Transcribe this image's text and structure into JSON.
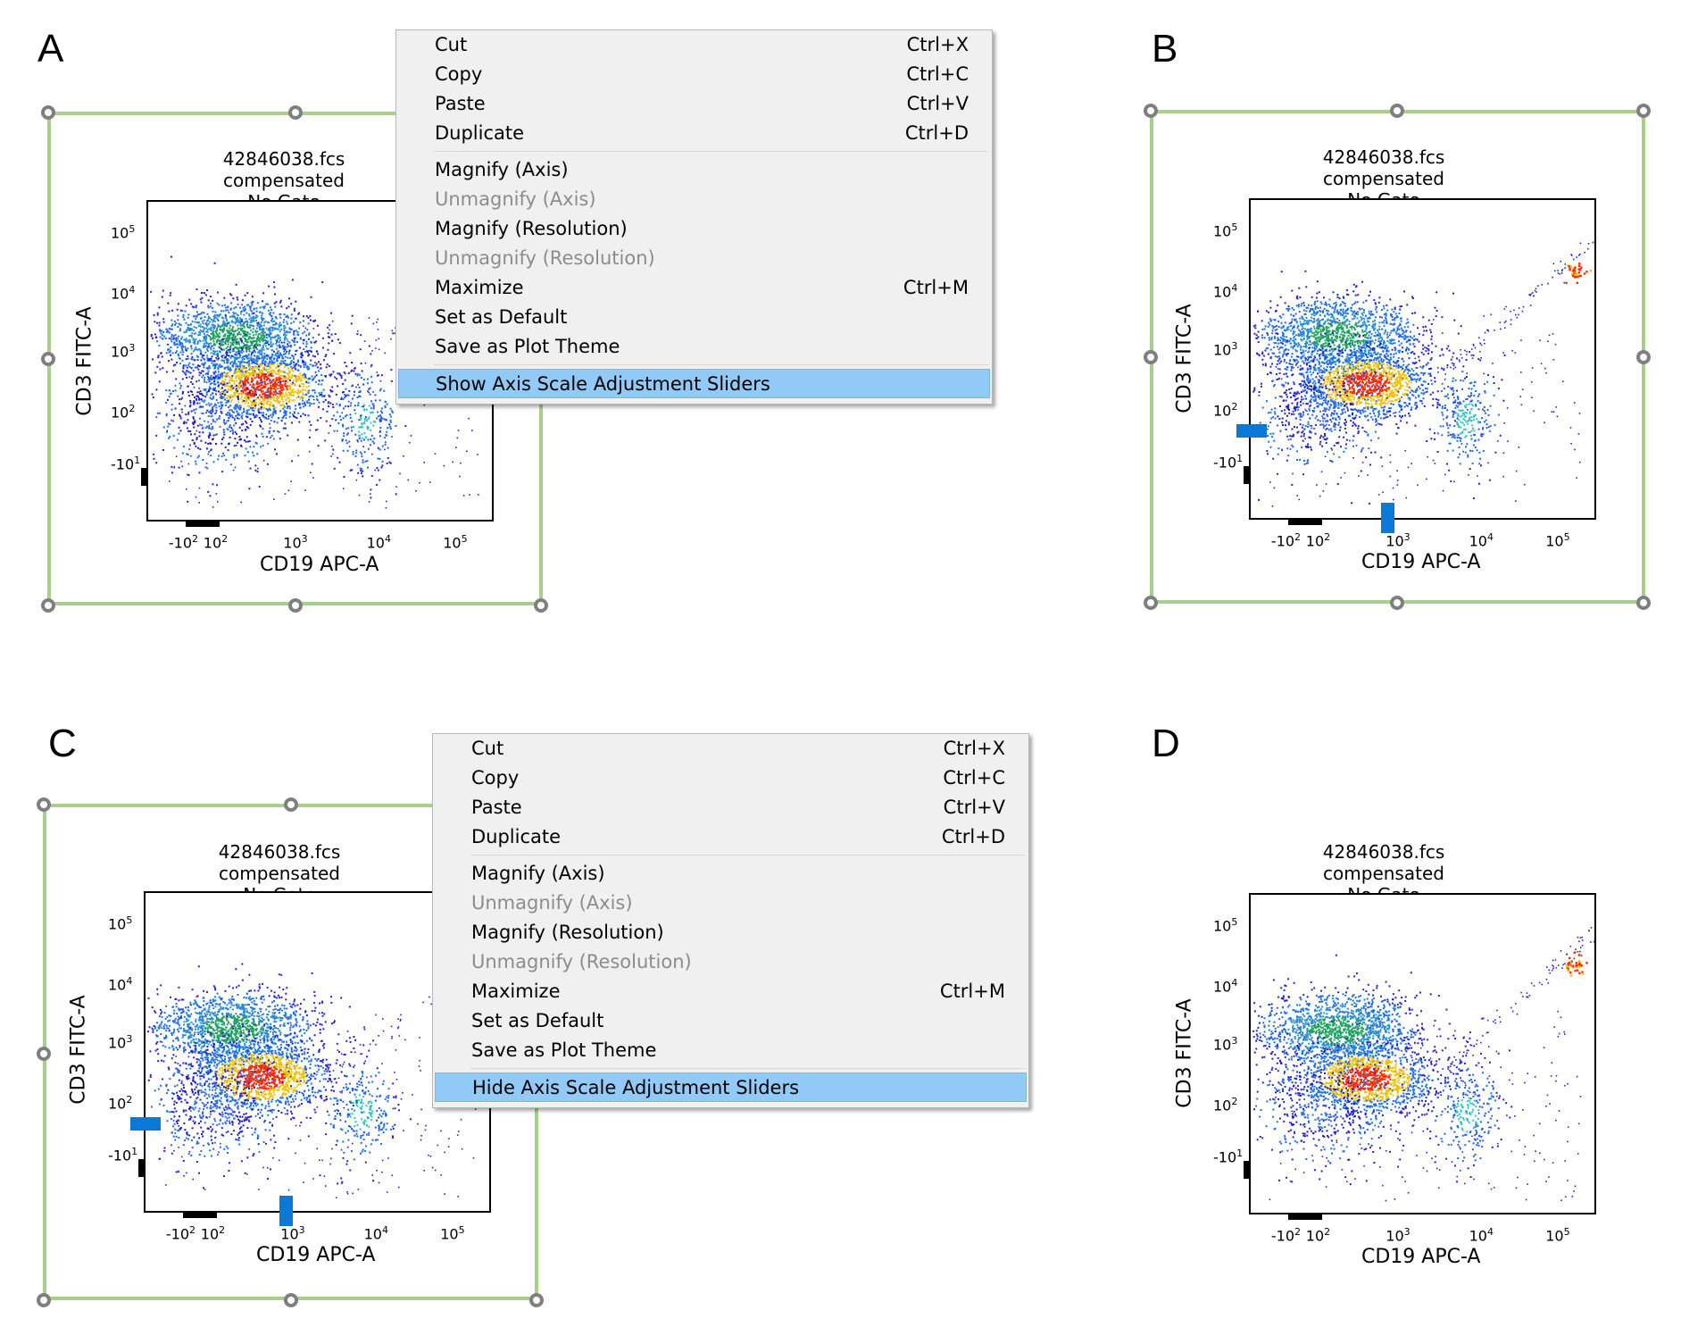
{
  "panels": [
    {
      "letter": "A",
      "plot": {
        "title_line1": "42846038.fcs compensated",
        "title_line2": "No Gate",
        "y_axis_label": "CD3 FITC-A",
        "x_axis_label": "CD19 APC-A"
      },
      "selected": true,
      "sliders_shown": false,
      "extended_range": false
    },
    {
      "letter": "B",
      "plot": {
        "title_line1": "42846038.fcs compensated",
        "title_line2": "No Gate",
        "y_axis_label": "CD3 FITC-A",
        "x_axis_label": "CD19 APC-A"
      },
      "selected": true,
      "sliders_shown": true,
      "extended_range": true
    },
    {
      "letter": "C",
      "plot": {
        "title_line1": "42846038.fcs compensated",
        "title_line2": "No Gate",
        "y_axis_label": "CD3 FITC-A",
        "x_axis_label": "CD19 APC-A"
      },
      "selected": true,
      "sliders_shown": true,
      "extended_range": false
    },
    {
      "letter": "D",
      "plot": {
        "title_line1": "42846038.fcs compensated",
        "title_line2": "No Gate",
        "y_axis_label": "CD3 FITC-A",
        "x_axis_label": "CD19 APC-A"
      },
      "selected": false,
      "sliders_shown": false,
      "extended_range": true
    }
  ],
  "axis_ticks": {
    "y": [
      "10^5",
      "10^4",
      "10^3",
      "10^2",
      "-10^1"
    ],
    "x": [
      "-10^2",
      "10^2",
      "10^3",
      "10^4",
      "10^5"
    ]
  },
  "menu_a": {
    "items": [
      {
        "label": "Cut",
        "shortcut": "Ctrl+X"
      },
      {
        "label": "Copy",
        "shortcut": "Ctrl+C"
      },
      {
        "label": "Paste",
        "shortcut": "Ctrl+V"
      },
      {
        "label": "Duplicate",
        "shortcut": "Ctrl+D"
      },
      {
        "label": "Magnify (Axis)",
        "shortcut": ""
      },
      {
        "label": "Unmagnify (Axis)",
        "shortcut": ""
      },
      {
        "label": "Magnify (Resolution)",
        "shortcut": ""
      },
      {
        "label": "Unmagnify (Resolution)",
        "shortcut": ""
      },
      {
        "label": "Maximize",
        "shortcut": "Ctrl+M"
      },
      {
        "label": "Set as Default",
        "shortcut": ""
      },
      {
        "label": "Save as Plot Theme",
        "shortcut": ""
      },
      {
        "label": "Show Axis Scale Adjustment Sliders",
        "shortcut": ""
      }
    ]
  },
  "menu_c": {
    "items": [
      {
        "label": "Cut",
        "shortcut": "Ctrl+X"
      },
      {
        "label": "Copy",
        "shortcut": "Ctrl+C"
      },
      {
        "label": "Paste",
        "shortcut": "Ctrl+V"
      },
      {
        "label": "Duplicate",
        "shortcut": "Ctrl+D"
      },
      {
        "label": "Magnify (Axis)",
        "shortcut": ""
      },
      {
        "label": "Unmagnify (Axis)",
        "shortcut": ""
      },
      {
        "label": "Magnify (Resolution)",
        "shortcut": ""
      },
      {
        "label": "Unmagnify (Resolution)",
        "shortcut": ""
      },
      {
        "label": "Maximize",
        "shortcut": "Ctrl+M"
      },
      {
        "label": "Set as Default",
        "shortcut": ""
      },
      {
        "label": "Save as Plot Theme",
        "shortcut": ""
      },
      {
        "label": "Hide Axis Scale Adjustment Sliders",
        "shortcut": ""
      }
    ]
  },
  "colors": {
    "selection_frame": "#a8d08d",
    "handle": "#7f7f7f",
    "slider": "#0a78d4",
    "menu_bg": "#f0f0f0",
    "menu_highlight": "#91c9f7",
    "disabled_text": "#8c8c8c"
  }
}
